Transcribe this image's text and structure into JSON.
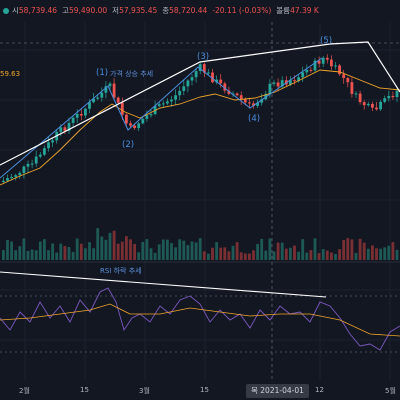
{
  "header": {
    "open_label": "시",
    "open_value": "58,739.46",
    "high_label": "고",
    "high_value": "59,490.00",
    "low_label": "저",
    "low_value": "57,935.45",
    "close_label": "종",
    "close_value": "58,720.44",
    "change": "-20.11 (-0.03%)",
    "volume_label": "볼륨",
    "volume_value": "47.39 K"
  },
  "ma_value": "59.63",
  "annotations": {
    "wave1": "(1)",
    "price_trend": "가격 상승 추세",
    "wave2": "(2)",
    "wave3": "(3)",
    "wave4": "(4)",
    "wave5": "(5)",
    "rsi_trend": "RSI 하락 추세"
  },
  "xaxis": {
    "labels": [
      "2월",
      "15",
      "3월",
      "15",
      "12",
      "5월"
    ],
    "crosshair_date": "목 2021-04-01"
  },
  "colors": {
    "background": "#131722",
    "up": "#26a69a",
    "down": "#ef5350",
    "ma": "#f0a52a",
    "rsi": "#7e57c2",
    "trendline": "#ffffff",
    "annotation": "#4a90e2"
  }
}
